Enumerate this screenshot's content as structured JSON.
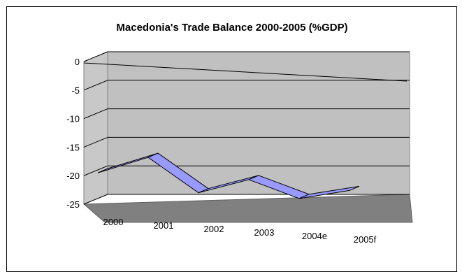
{
  "chart_data": {
    "type": "line",
    "title": "Macedonia's Trade Balance 2000-2005 (%GDP)",
    "xlabel": "",
    "ylabel": "",
    "categories": [
      "2000",
      "2001",
      "2002",
      "2003",
      "2004e",
      "2005f"
    ],
    "series": [
      {
        "values": [
          -19.5,
          -16.8,
          -23.0,
          -20.7,
          -24.0,
          -22.6
        ]
      }
    ],
    "ylim": [
      -25,
      0
    ],
    "yticks": [
      "0",
      "-5",
      "-10",
      "-15",
      "-20",
      "-25"
    ],
    "grid": true,
    "legend": "none",
    "style": "3d",
    "colors": {
      "ribbon": "#9999ff",
      "ribbon_edge": "#000000",
      "wall": "#c0c0c0",
      "floor": "#808080",
      "gridline": "#000000"
    }
  }
}
